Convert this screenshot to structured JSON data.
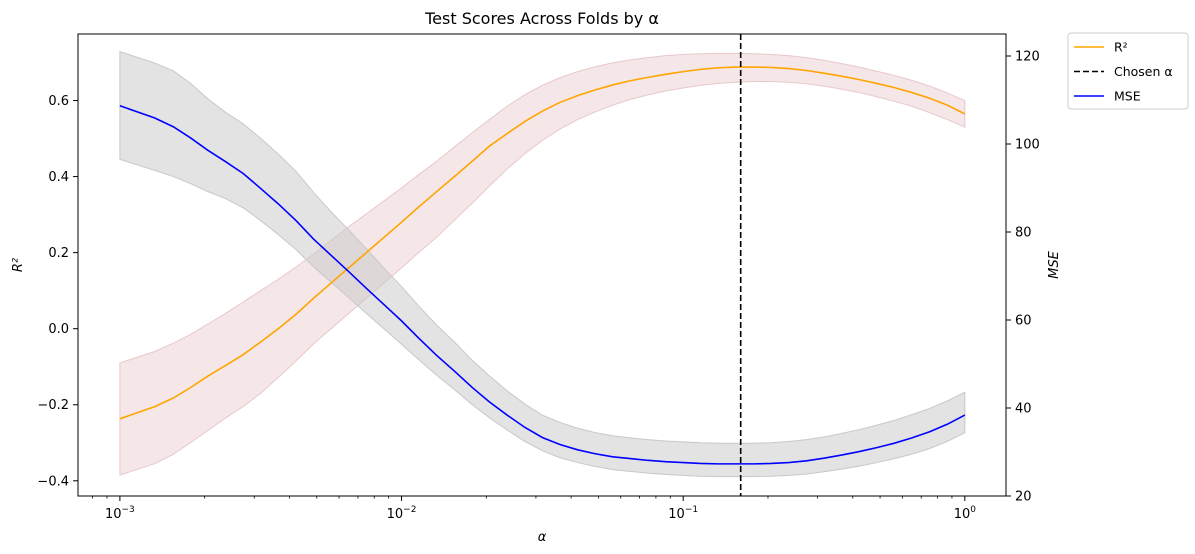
{
  "chart_data": {
    "type": "line",
    "title": "Test Scores Across Folds by α",
    "xlabel": "α",
    "ylabel_left": "R²",
    "ylabel_right": "MSE",
    "xscale": "log",
    "xlim": [
      0.00071,
      1.4
    ],
    "ylim_left": [
      -0.44,
      0.775
    ],
    "ylim_right": [
      20,
      125
    ],
    "x_ticks": [
      {
        "value": 0.001,
        "label_base": "10",
        "label_exp": "−3"
      },
      {
        "value": 0.01,
        "label_base": "10",
        "label_exp": "−2"
      },
      {
        "value": 0.1,
        "label_base": "10",
        "label_exp": "−1"
      },
      {
        "value": 1,
        "label_base": "10",
        "label_exp": "0"
      }
    ],
    "y_ticks_left": [
      -0.4,
      -0.2,
      0.0,
      0.2,
      0.4,
      0.6
    ],
    "y_ticks_left_labels": [
      "−0.4",
      "−0.2",
      "0.0",
      "0.2",
      "0.4",
      "0.6"
    ],
    "y_ticks_right": [
      20,
      40,
      60,
      80,
      100,
      120
    ],
    "chosen_alpha": 0.16,
    "legend_position": "outside upper right",
    "x": [
      0.001,
      0.00133,
      0.00155,
      0.00178,
      0.00205,
      0.00237,
      0.00274,
      0.00316,
      0.00365,
      0.00422,
      0.00487,
      0.00562,
      0.00649,
      0.0075,
      0.00866,
      0.01,
      0.0115,
      0.0133,
      0.0154,
      0.0178,
      0.0205,
      0.0237,
      0.0274,
      0.0316,
      0.0365,
      0.0422,
      0.0487,
      0.0562,
      0.0649,
      0.075,
      0.0866,
      0.1,
      0.115,
      0.133,
      0.154,
      0.178,
      0.205,
      0.237,
      0.274,
      0.316,
      0.365,
      0.422,
      0.487,
      0.562,
      0.649,
      0.75,
      0.866,
      1.0
    ],
    "series": [
      {
        "name": "R²",
        "axis": "left",
        "color": "#ffa500",
        "band_color": "#e8c8cc",
        "values": [
          -0.237,
          -0.205,
          -0.182,
          -0.155,
          -0.125,
          -0.097,
          -0.068,
          -0.035,
          0.0,
          0.038,
          0.08,
          0.12,
          0.16,
          0.2,
          0.24,
          0.28,
          0.32,
          0.36,
          0.4,
          0.44,
          0.48,
          0.513,
          0.545,
          0.572,
          0.595,
          0.613,
          0.628,
          0.641,
          0.652,
          0.661,
          0.669,
          0.676,
          0.682,
          0.686,
          0.688,
          0.688,
          0.687,
          0.684,
          0.679,
          0.672,
          0.664,
          0.655,
          0.645,
          0.634,
          0.621,
          0.606,
          0.588,
          0.565
        ],
        "lower": [
          -0.385,
          -0.355,
          -0.33,
          -0.3,
          -0.268,
          -0.235,
          -0.205,
          -0.17,
          -0.128,
          -0.085,
          -0.04,
          0.0,
          0.04,
          0.08,
          0.12,
          0.16,
          0.2,
          0.24,
          0.285,
          0.33,
          0.375,
          0.42,
          0.46,
          0.495,
          0.525,
          0.55,
          0.57,
          0.588,
          0.603,
          0.615,
          0.625,
          0.633,
          0.64,
          0.645,
          0.648,
          0.65,
          0.65,
          0.648,
          0.644,
          0.638,
          0.63,
          0.621,
          0.61,
          0.598,
          0.585,
          0.568,
          0.55,
          0.53
        ],
        "upper": [
          -0.09,
          -0.06,
          -0.038,
          -0.015,
          0.012,
          0.04,
          0.07,
          0.1,
          0.13,
          0.162,
          0.196,
          0.232,
          0.268,
          0.302,
          0.336,
          0.37,
          0.405,
          0.44,
          0.478,
          0.515,
          0.55,
          0.585,
          0.615,
          0.64,
          0.66,
          0.676,
          0.689,
          0.699,
          0.707,
          0.713,
          0.718,
          0.721,
          0.723,
          0.724,
          0.724,
          0.723,
          0.721,
          0.718,
          0.713,
          0.706,
          0.697,
          0.688,
          0.677,
          0.666,
          0.653,
          0.638,
          0.62,
          0.6
        ]
      },
      {
        "name": "MSE",
        "axis": "right",
        "color": "#0000ff",
        "band_color": "#c8c8c8",
        "values": [
          108.7,
          105.9,
          103.9,
          101.4,
          98.6,
          96.0,
          93.3,
          89.9,
          86.4,
          82.6,
          78.4,
          74.7,
          71.0,
          67.2,
          63.5,
          59.8,
          55.9,
          52.0,
          48.4,
          44.7,
          41.4,
          38.4,
          35.6,
          33.3,
          31.7,
          30.5,
          29.6,
          28.9,
          28.5,
          28.1,
          27.8,
          27.6,
          27.4,
          27.3,
          27.3,
          27.3,
          27.4,
          27.6,
          28.0,
          28.6,
          29.3,
          30.1,
          31.0,
          32.0,
          33.2,
          34.6,
          36.3,
          38.4
        ],
        "lower": [
          96.5,
          94.0,
          92.6,
          91.0,
          89.2,
          87.6,
          85.5,
          82.6,
          79.4,
          76.0,
          72.1,
          68.6,
          65.1,
          61.5,
          58.0,
          54.5,
          51.0,
          47.5,
          44.2,
          40.8,
          37.8,
          35.0,
          32.4,
          30.3,
          28.7,
          27.6,
          26.7,
          26.0,
          25.6,
          25.2,
          24.9,
          24.7,
          24.5,
          24.4,
          24.4,
          24.4,
          24.5,
          24.7,
          25.0,
          25.5,
          26.1,
          26.8,
          27.6,
          28.5,
          29.5,
          30.8,
          32.4,
          34.4
        ],
        "upper": [
          121.0,
          118.4,
          116.6,
          113.8,
          110.3,
          107.2,
          104.6,
          101.3,
          97.7,
          93.8,
          89.0,
          84.6,
          80.5,
          76.2,
          71.8,
          67.6,
          63.2,
          58.9,
          55.0,
          50.9,
          47.3,
          43.9,
          40.9,
          38.4,
          36.7,
          35.4,
          34.4,
          33.7,
          33.2,
          32.8,
          32.5,
          32.3,
          32.1,
          32.0,
          32.0,
          32.0,
          32.1,
          32.4,
          32.8,
          33.4,
          34.2,
          35.1,
          36.1,
          37.2,
          38.5,
          39.9,
          41.6,
          43.6
        ]
      }
    ],
    "legend": [
      {
        "label": "R²",
        "color": "#ffa500",
        "style": "solid"
      },
      {
        "label": "Chosen α",
        "color": "#000000",
        "style": "dashed"
      },
      {
        "label": "MSE",
        "color": "#0000ff",
        "style": "solid"
      }
    ]
  }
}
